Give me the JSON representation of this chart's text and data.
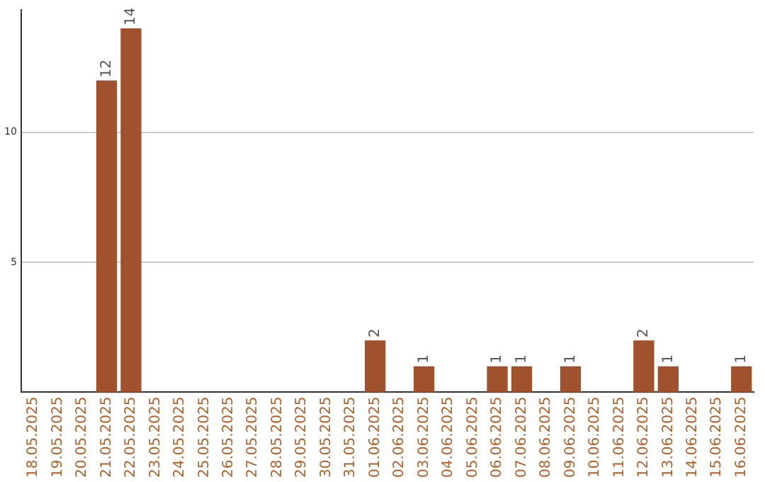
{
  "chart_data": {
    "type": "bar",
    "categories": [
      "18.05.2025",
      "19.05.2025",
      "20.05.2025",
      "21.05.2025",
      "22.05.2025",
      "23.05.2025",
      "24.05.2025",
      "25.05.2025",
      "26.05.2025",
      "27.05.2025",
      "28.05.2025",
      "29.05.2025",
      "30.05.2025",
      "31.05.2025",
      "01.06.2025",
      "02.06.2025",
      "03.06.2025",
      "04.06.2025",
      "05.06.2025",
      "06.06.2025",
      "07.06.2025",
      "08.06.2025",
      "09.06.2025",
      "10.06.2025",
      "11.06.2025",
      "12.06.2025",
      "13.06.2025",
      "14.06.2025",
      "15.06.2025",
      "16.06.2025"
    ],
    "values": [
      0,
      0,
      0,
      12,
      14,
      0,
      0,
      0,
      0,
      0,
      0,
      0,
      0,
      0,
      2,
      0,
      1,
      0,
      0,
      1,
      1,
      0,
      1,
      0,
      0,
      2,
      1,
      0,
      0,
      1
    ],
    "value_labels": [
      null,
      null,
      null,
      "12",
      "14",
      null,
      null,
      null,
      null,
      null,
      null,
      null,
      null,
      null,
      "2",
      null,
      "1",
      null,
      null,
      "1",
      "1",
      null,
      "1",
      null,
      null,
      "2",
      "1",
      null,
      null,
      "1"
    ],
    "color": "#a0522d",
    "ylim": [
      0,
      14.7
    ],
    "yticks": [
      5,
      10
    ],
    "grid": "y",
    "legend": false
  }
}
